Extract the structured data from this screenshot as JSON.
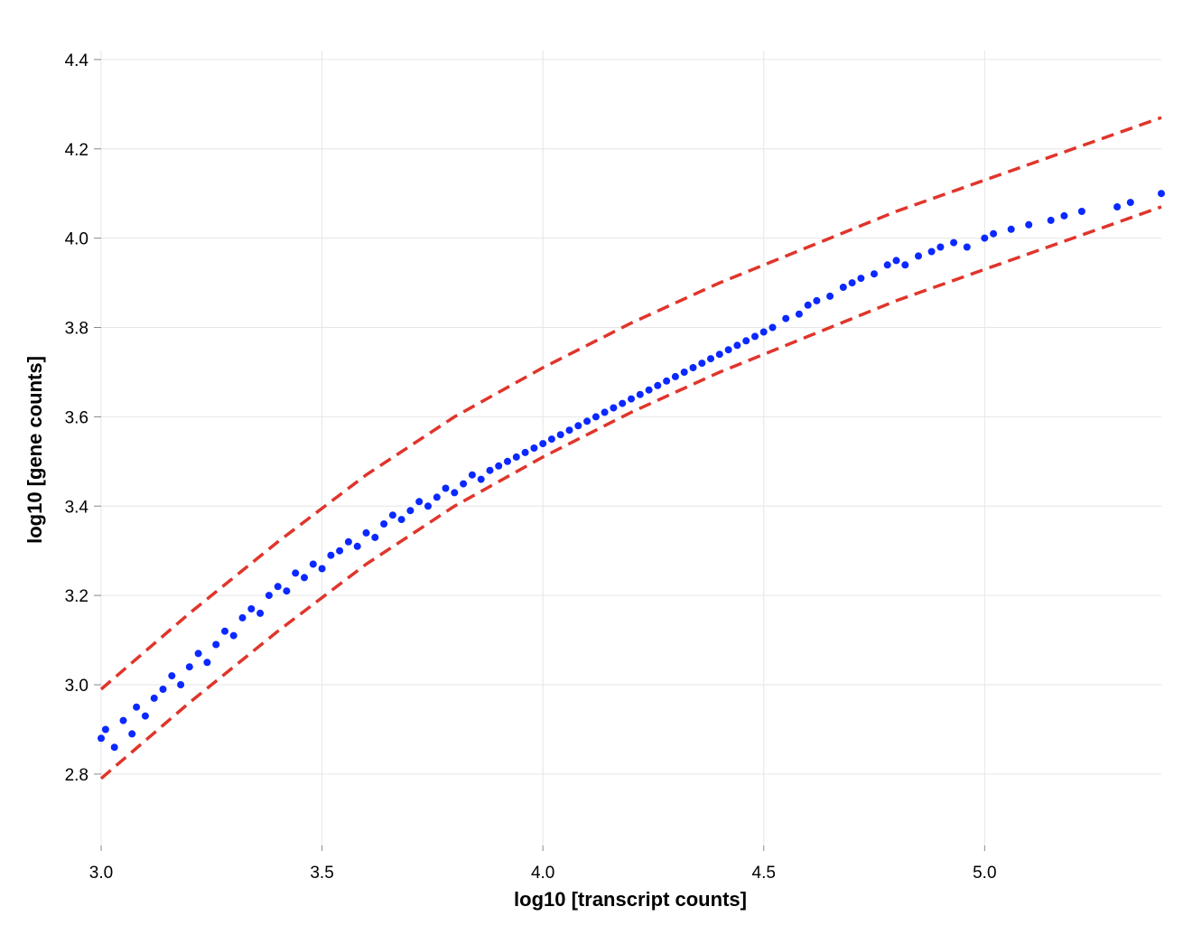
{
  "chart_data": {
    "type": "scatter",
    "title": "",
    "xlabel": "log10 [transcript counts]",
    "ylabel": "log10 [gene counts]",
    "xlim": [
      3.0,
      5.4
    ],
    "ylim": [
      2.64,
      4.42
    ],
    "x_ticks": [
      "3.0",
      "3.5",
      "4.0",
      "4.5",
      "5.0"
    ],
    "y_ticks": [
      "2.8",
      "3.0",
      "3.2",
      "3.4",
      "3.6",
      "3.8",
      "4.0",
      "4.2",
      "4.4"
    ],
    "grid": true,
    "point_color": "#0a28ff",
    "boundary_color": "#e0352b",
    "series": [
      {
        "kind": "points",
        "x": [
          3.0,
          3.01,
          3.03,
          3.05,
          3.07,
          3.08,
          3.1,
          3.12,
          3.14,
          3.16,
          3.18,
          3.2,
          3.22,
          3.24,
          3.26,
          3.28,
          3.3,
          3.32,
          3.34,
          3.36,
          3.38,
          3.4,
          3.42,
          3.44,
          3.46,
          3.48,
          3.5,
          3.52,
          3.54,
          3.56,
          3.58,
          3.6,
          3.62,
          3.64,
          3.66,
          3.68,
          3.7,
          3.72,
          3.74,
          3.76,
          3.78,
          3.8,
          3.82,
          3.84,
          3.86,
          3.88,
          3.9,
          3.92,
          3.94,
          3.96,
          3.98,
          4.0,
          4.02,
          4.04,
          4.06,
          4.08,
          4.1,
          4.12,
          4.14,
          4.16,
          4.18,
          4.2,
          4.22,
          4.24,
          4.26,
          4.28,
          4.3,
          4.32,
          4.34,
          4.36,
          4.38,
          4.4,
          4.42,
          4.44,
          4.46,
          4.48,
          4.5,
          4.52,
          4.55,
          4.58,
          4.6,
          4.62,
          4.65,
          4.68,
          4.7,
          4.72,
          4.75,
          4.78,
          4.8,
          4.82,
          4.85,
          4.88,
          4.9,
          4.93,
          4.96,
          5.0,
          5.02,
          5.06,
          5.1,
          5.15,
          5.18,
          5.22,
          5.3,
          5.33,
          5.4
        ],
        "y": [
          2.88,
          2.9,
          2.86,
          2.92,
          2.89,
          2.95,
          2.93,
          2.97,
          2.99,
          3.02,
          3.0,
          3.04,
          3.07,
          3.05,
          3.09,
          3.12,
          3.11,
          3.15,
          3.17,
          3.16,
          3.2,
          3.22,
          3.21,
          3.25,
          3.24,
          3.27,
          3.26,
          3.29,
          3.3,
          3.32,
          3.31,
          3.34,
          3.33,
          3.36,
          3.38,
          3.37,
          3.39,
          3.41,
          3.4,
          3.42,
          3.44,
          3.43,
          3.45,
          3.47,
          3.46,
          3.48,
          3.49,
          3.5,
          3.51,
          3.52,
          3.53,
          3.54,
          3.55,
          3.56,
          3.57,
          3.58,
          3.59,
          3.6,
          3.61,
          3.62,
          3.63,
          3.64,
          3.65,
          3.66,
          3.67,
          3.68,
          3.69,
          3.7,
          3.71,
          3.72,
          3.73,
          3.74,
          3.75,
          3.76,
          3.77,
          3.78,
          3.79,
          3.8,
          3.82,
          3.83,
          3.85,
          3.86,
          3.87,
          3.89,
          3.9,
          3.91,
          3.92,
          3.94,
          3.95,
          3.94,
          3.96,
          3.97,
          3.98,
          3.99,
          3.98,
          4.0,
          4.01,
          4.02,
          4.03,
          4.04,
          4.05,
          4.06,
          4.07,
          4.08,
          4.1
        ]
      },
      {
        "kind": "upper-bound",
        "x": [
          3.0,
          3.2,
          3.4,
          3.6,
          3.8,
          4.0,
          4.2,
          4.4,
          4.6,
          4.8,
          5.0,
          5.2,
          5.4
        ],
        "y": [
          2.99,
          3.16,
          3.32,
          3.47,
          3.6,
          3.71,
          3.81,
          3.9,
          3.98,
          4.06,
          4.13,
          4.2,
          4.27
        ]
      },
      {
        "kind": "lower-bound",
        "x": [
          3.0,
          3.2,
          3.4,
          3.6,
          3.8,
          4.0,
          4.2,
          4.4,
          4.6,
          4.8,
          5.0,
          5.2,
          5.4
        ],
        "y": [
          2.79,
          2.96,
          3.12,
          3.27,
          3.4,
          3.51,
          3.61,
          3.7,
          3.78,
          3.86,
          3.93,
          4.0,
          4.07
        ]
      }
    ]
  }
}
